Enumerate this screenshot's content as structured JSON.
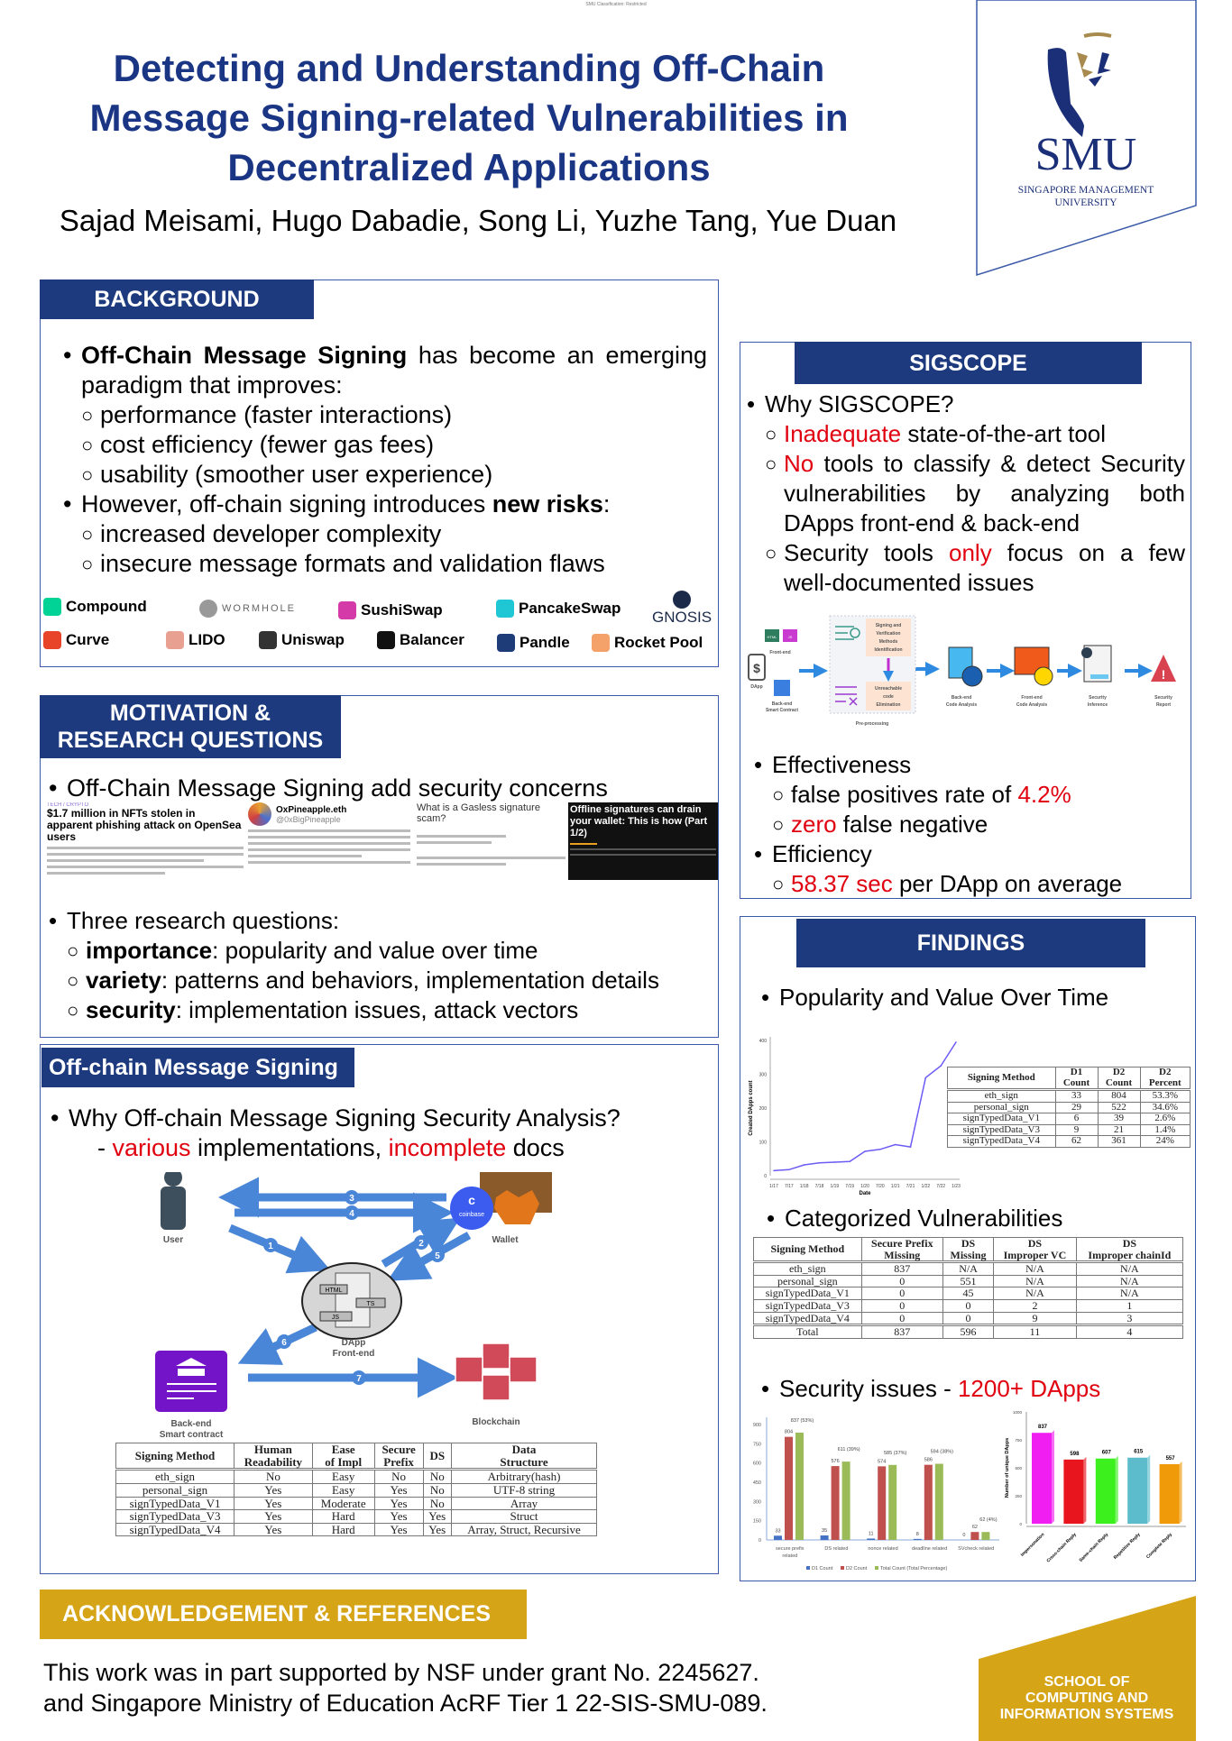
{
  "classification": "SMU Classification: Restricted",
  "title": [
    "Detecting and Understanding Off-Chain",
    "Message Signing-related Vulnerabilities in",
    "Decentralized Applications"
  ],
  "authors": "Sajad Meisami, Hugo Dabadie, Song Li, Yuzhe Tang, Yue Duan",
  "logo": {
    "name": "SMU",
    "subtitle": [
      "SINGAPORE MANAGEMENT",
      "UNIVERSITY"
    ],
    "color": "#1b2f78",
    "gold": "#a88a4e"
  },
  "background": {
    "header": "BACKGROUND",
    "items": [
      {
        "level": 1,
        "segs": [
          {
            "t": "Off-Chain Message Signing",
            "s": "b"
          },
          {
            "t": " has become an emerging paradigm that improves:"
          }
        ]
      },
      {
        "level": 2,
        "segs": [
          {
            "t": "performance (faster interactions)"
          }
        ]
      },
      {
        "level": 2,
        "segs": [
          {
            "t": "cost efficiency (fewer gas fees)"
          }
        ]
      },
      {
        "level": 2,
        "segs": [
          {
            "t": "usability (smoother user experience)"
          }
        ]
      },
      {
        "level": 1,
        "segs": [
          {
            "t": "However, off-chain signing introduces "
          },
          {
            "t": "new risks",
            "s": "b"
          },
          {
            "t": ":"
          }
        ]
      },
      {
        "level": 2,
        "segs": [
          {
            "t": "increased developer complexity"
          }
        ]
      },
      {
        "level": 2,
        "segs": [
          {
            "t": "insecure message formats and validation flaws"
          }
        ]
      }
    ],
    "logos": [
      {
        "name": "Compound",
        "color": "#00d395"
      },
      {
        "name": "WORMHOLE",
        "color": "#999999"
      },
      {
        "name": "SushiSwap",
        "color": "#d43aa8"
      },
      {
        "name": "PancakeSwap",
        "color": "#1fc7d4"
      },
      {
        "name": "GNOSIS",
        "color": "#1c2a4a"
      },
      {
        "name": "Curve",
        "color": "#e8442a"
      },
      {
        "name": "LIDO",
        "color": "#e8a090"
      },
      {
        "name": "Uniswap",
        "color": "#333333"
      },
      {
        "name": "Balancer",
        "color": "#111111"
      },
      {
        "name": "Pandle",
        "color": "#1d3c78"
      },
      {
        "name": "Rocket Pool",
        "color": "#f4a26a"
      }
    ]
  },
  "motivation": {
    "header": "MOTIVATION &\nRESEARCH QUESTIONS",
    "items1": [
      {
        "level": 1,
        "segs": [
          {
            "t": "Off-Chain Message Signing add security concerns"
          }
        ]
      }
    ],
    "shots": [
      {
        "tag": "TECH / CRYPTO",
        "headline": "$1.7 million in NFTs stolen in apparent phishing attack on OpenSea users"
      },
      {
        "handle_name": "OxPineapple.eth",
        "handle": "@0xBigPineapple"
      },
      {
        "headline": "What is a Gasless signature scam?"
      },
      {
        "headline": "Offline signatures can drain your wallet: This is how (Part 1/2)"
      }
    ],
    "items2": [
      {
        "level": 1,
        "segs": [
          {
            "t": "Three research questions:"
          }
        ]
      },
      {
        "level": 2,
        "segs": [
          {
            "t": "importance",
            "s": "b"
          },
          {
            "t": ": popularity and value over time"
          }
        ]
      },
      {
        "level": 2,
        "segs": [
          {
            "t": "variety",
            "s": "b"
          },
          {
            "t": ": patterns and behaviors, implementation details"
          }
        ]
      },
      {
        "level": 2,
        "segs": [
          {
            "t": "security",
            "s": "b"
          },
          {
            "t": ": implementation issues, attack vectors"
          }
        ]
      }
    ]
  },
  "offchain": {
    "header": "Off-chain Message Signing",
    "items": [
      {
        "level": 1,
        "segs": [
          {
            "t": "Why Off-chain Message Signing Security Analysis?"
          }
        ]
      },
      {
        "level": 3,
        "segs": [
          {
            "t": "- "
          },
          {
            "t": "various",
            "s": "r"
          },
          {
            "t": " implementations, "
          },
          {
            "t": "incomplete",
            "s": "r"
          },
          {
            "t": " docs"
          }
        ]
      }
    ],
    "diagram": {
      "user": "User",
      "wallet": "Wallet",
      "coinbase": "coinbase",
      "frontend": [
        "DApp",
        "Front-end"
      ],
      "backend": [
        "Back-end",
        "Smart contract"
      ],
      "blockchain": "Blockchain",
      "file_tags": [
        "HTML",
        "TS",
        "JS"
      ],
      "steps": [
        "1",
        "2",
        "3",
        "4",
        "5",
        "6",
        "7"
      ]
    },
    "table": {
      "headers": [
        "Signing Method",
        "Human\nReadability",
        "Ease\nof Impl",
        "Secure\nPrefix",
        "DS",
        "Data\nStructure"
      ],
      "rows": [
        [
          "eth_sign",
          "No",
          "Easy",
          "No",
          "No",
          "Arbitrary(hash)"
        ],
        [
          "personal_sign",
          "Yes",
          "Easy",
          "Yes",
          "No",
          "UTF-8 string"
        ],
        [
          "signTypedData_V1",
          "Yes",
          "Moderate",
          "Yes",
          "No",
          "Array"
        ],
        [
          "signTypedData_V3",
          "Yes",
          "Hard",
          "Yes",
          "Yes",
          "Struct"
        ],
        [
          "signTypedData_V4",
          "Yes",
          "Hard",
          "Yes",
          "Yes",
          "Array, Struct, Recursive"
        ]
      ]
    }
  },
  "sigscope": {
    "header": "SIGSCOPE",
    "items1": [
      {
        "level": 1,
        "segs": [
          {
            "t": "Why SIGSCOPE?"
          }
        ]
      },
      {
        "level": 2,
        "segs": [
          {
            "t": "Inadequate",
            "s": "r"
          },
          {
            "t": " state-of-the-art tool"
          }
        ]
      },
      {
        "level": 2,
        "segs": [
          {
            "t": "No",
            "s": "r"
          },
          {
            "t": " tools to classify & detect Security vulnerabilities by analyzing both DApps front-end & back-end"
          }
        ]
      },
      {
        "level": 2,
        "segs": [
          {
            "t": "Security tools "
          },
          {
            "t": "only",
            "s": "r"
          },
          {
            "t": " focus on a few well-documented issues"
          }
        ]
      }
    ],
    "pipeline": {
      "dapp": "DApp",
      "frontend": "Front-end",
      "backend": [
        "Back-end",
        "Smart Contract"
      ],
      "file_tags": [
        "HTML",
        "JS"
      ],
      "pre_steps": [
        [
          "Signing and",
          "Verification",
          "Methods",
          "Identification"
        ],
        [
          "Unreachable",
          "code",
          "Elimination"
        ]
      ],
      "preprocessing": "Pre-processing",
      "stages": [
        [
          "Back-end",
          "Code Analysis"
        ],
        [
          "Front-end",
          "Code Analysis"
        ],
        [
          "Security",
          "Inference"
        ],
        [
          "Security",
          "Report"
        ]
      ]
    },
    "items2": [
      {
        "level": 1,
        "segs": [
          {
            "t": "Effectiveness"
          }
        ]
      },
      {
        "level": 2,
        "segs": [
          {
            "t": "false positives rate of "
          },
          {
            "t": "4.2%",
            "s": "r"
          }
        ]
      },
      {
        "level": 2,
        "segs": [
          {
            "t": "zero",
            "s": "r"
          },
          {
            "t": " false negative"
          }
        ]
      },
      {
        "level": 1,
        "segs": [
          {
            "t": "Efficiency"
          }
        ]
      },
      {
        "level": 2,
        "segs": [
          {
            "t": "58.37 sec",
            "s": "r"
          },
          {
            "t": " per DApp on average"
          }
        ]
      }
    ]
  },
  "findings": {
    "header": "FINDINGS",
    "b1": [
      {
        "level": 1,
        "segs": [
          {
            "t": "Popularity and Value Over Time"
          }
        ]
      }
    ],
    "table1": {
      "headers": [
        "Signing Method",
        "D1\nCount",
        "D2\nCount",
        "D2\nPercent"
      ],
      "rows": [
        [
          "eth_sign",
          "33",
          "804",
          "53.3%"
        ],
        [
          "personal_sign",
          "29",
          "522",
          "34.6%"
        ],
        [
          "signTypedData_V1",
          "6",
          "39",
          "2.6%"
        ],
        [
          "signTypedData_V3",
          "9",
          "21",
          "1.4%"
        ],
        [
          "signTypedData_V4",
          "62",
          "361",
          "24%"
        ]
      ]
    },
    "b2": [
      {
        "level": 1,
        "segs": [
          {
            "t": "Categorized Vulnerabilities"
          }
        ]
      }
    ],
    "table2": {
      "headers": [
        "Signing Method",
        "Secure Prefix\nMissing",
        "DS\nMissing",
        "DS\nImproper VC",
        "DS\nImproper chainId"
      ],
      "rows": [
        [
          "eth_sign",
          "837",
          "N/A",
          "N/A",
          "N/A"
        ],
        [
          "personal_sign",
          "0",
          "551",
          "N/A",
          "N/A"
        ],
        [
          "signTypedData_V1",
          "0",
          "45",
          "N/A",
          "N/A"
        ],
        [
          "signTypedData_V3",
          "0",
          "0",
          "2",
          "1"
        ],
        [
          "signTypedData_V4",
          "0",
          "0",
          "9",
          "3"
        ]
      ],
      "total": [
        "Total",
        "837",
        "596",
        "11",
        "4"
      ]
    },
    "b3": [
      {
        "level": 1,
        "segs": [
          {
            "t": "Security issues - "
          },
          {
            "t": "1200+ DApps",
            "s": "r"
          }
        ]
      }
    ]
  },
  "chart_data": [
    {
      "type": "line",
      "xlabel": "Date",
      "ylabel": "Created DApps count",
      "x": [
        "1/17",
        "7/17",
        "1/18",
        "7/18",
        "1/19",
        "7/19",
        "1/20",
        "7/20",
        "1/21",
        "7/21",
        "1/22",
        "7/22",
        "1/23"
      ],
      "values": [
        15,
        18,
        32,
        38,
        40,
        42,
        72,
        78,
        92,
        85,
        290,
        325,
        395
      ],
      "ylim": [
        0,
        400
      ],
      "yticks": [
        0,
        100,
        200,
        300,
        400
      ],
      "color": "#6b5cf5",
      "grid": false
    },
    {
      "type": "bar",
      "categories": [
        [
          "secure prefix",
          "related"
        ],
        [
          "DS related"
        ],
        [
          "nonce related"
        ],
        [
          "deadline related"
        ],
        [
          "SVcheck related"
        ]
      ],
      "series": [
        {
          "name": "D1 Count",
          "values": [
            33,
            35,
            11,
            8,
            0
          ],
          "labels": [
            "33",
            "35",
            "11",
            "8",
            "0"
          ],
          "color": "#4472c4"
        },
        {
          "name": "D2 Count",
          "values": [
            804,
            576,
            574,
            586,
            62
          ],
          "labels": [
            "804",
            "576",
            "574",
            "586",
            "62"
          ],
          "color": "#c0504d"
        },
        {
          "name": "Total Count (Total Percentage)",
          "values": [
            837,
            611,
            585,
            594,
            62
          ],
          "labels": [
            "837 (53%)",
            "611 (39%)",
            "585 (37%)",
            "594 (38%)",
            "62 (4%)"
          ],
          "color": "#9bbb59"
        }
      ],
      "ylim": [
        0,
        900
      ],
      "yticks": [
        0,
        150,
        300,
        450,
        600,
        750,
        900
      ],
      "legend": "bottom",
      "grid": false
    },
    {
      "type": "bar",
      "ylabel": "Number of unique DApps",
      "categories": [
        "Impersonation",
        "Cross-chain Reply",
        "Same-chain Reply",
        "Repetitive Reply",
        "Complete Reply"
      ],
      "values": [
        837,
        598,
        607,
        615,
        557
      ],
      "colors": [
        "#f01ef0",
        "#e8141e",
        "#3cf01e",
        "#5cbccc",
        "#f09a0a"
      ],
      "ylim": [
        0,
        1000
      ],
      "yticks": [
        0,
        250,
        500,
        750,
        1000
      ],
      "grid": false
    }
  ],
  "ack": {
    "header": "ACKNOWLEDGEMENT & REFERENCES",
    "lines": [
      "This work was in part supported by NSF under grant No. 2245627.",
      "and Singapore Ministry of Education AcRF Tier 1 22-SIS-SMU-089."
    ]
  },
  "school": {
    "lines": [
      "SCHOOL OF",
      "COMPUTING AND",
      "INFORMATION SYSTEMS"
    ],
    "color": "#d6a417"
  }
}
